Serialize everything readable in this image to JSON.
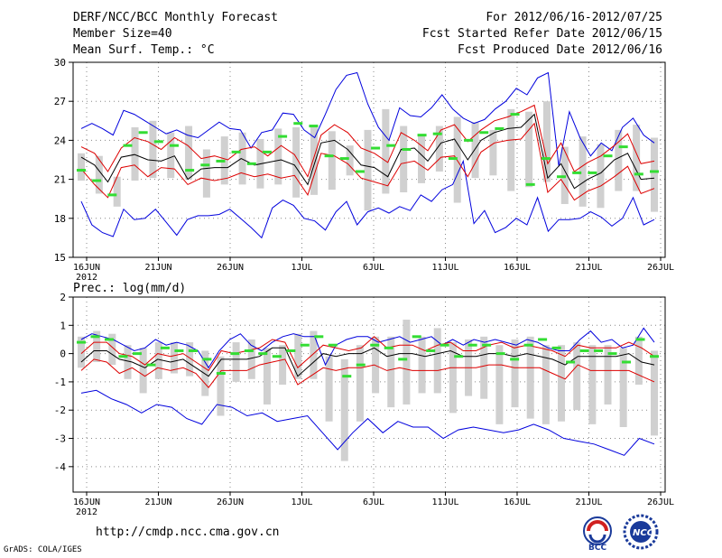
{
  "header": {
    "title": "DERF/NCC/BCC Monthly Forecast",
    "member_size": "Member Size=40",
    "variable": "Mean Surf. Temp.: °C",
    "period": "For 2012/06/16-2012/07/25",
    "started": "Fcst Started Refer Date 2012/06/15",
    "produced": "Fcst Produced Date 2012/06/16"
  },
  "footer": {
    "url": "http://cmdp.ncc.cma.gov.cn",
    "credit": "GrADS: COLA/IGES",
    "logo_bcc": "BCC",
    "logo_ncc": "NCC"
  },
  "colors": {
    "max_min": "#0000dd",
    "spread": "#dd0000",
    "mean": "#000000",
    "median": "#33dd33",
    "range_bar": "#d0d0d0",
    "grid": "#888888"
  },
  "chart_data": [
    {
      "type": "line",
      "title": "Mean Surf. Temp.: °C",
      "ylim": [
        15,
        30
      ],
      "yticks": [
        "15",
        "18",
        "21",
        "24",
        "27",
        "30"
      ],
      "xticks": [
        "16JUN",
        "21JUN",
        "26JUN",
        "1JUL",
        "6JUL",
        "11JUL",
        "16JUL",
        "21JUL",
        "26JUL"
      ],
      "year_label": "2012",
      "days": 40,
      "series": [
        {
          "name": "max",
          "values": [
            24.9,
            25.3,
            24.9,
            24.4,
            26.3,
            26.0,
            25.5,
            25.0,
            24.5,
            24.8,
            24.4,
            24.2,
            24.8,
            25.4,
            24.9,
            24.8,
            23.4,
            24.6,
            24.8,
            26.1,
            26.0,
            24.8,
            24.2,
            26.0,
            27.9,
            29.0,
            29.2,
            26.8,
            25.0,
            24.0,
            26.5,
            25.9,
            25.8,
            26.5,
            27.5,
            26.4,
            25.7,
            25.3,
            25.6,
            26.4,
            27.0,
            28.0,
            27.5,
            28.8,
            29.2,
            22.0,
            26.2,
            24.2,
            22.8,
            23.8,
            23.2,
            25.0,
            25.7,
            24.4,
            23.8
          ]
        },
        {
          "name": "min",
          "values": [
            19.3,
            17.5,
            16.9,
            16.6,
            18.7,
            17.9,
            18.0,
            18.7,
            17.7,
            16.7,
            17.9,
            18.2,
            18.2,
            18.3,
            18.7,
            18.0,
            17.3,
            16.5,
            18.8,
            19.4,
            19.0,
            18.0,
            17.8,
            17.1,
            18.5,
            19.3,
            17.5,
            18.5,
            18.8,
            18.4,
            18.9,
            18.6,
            19.8,
            19.3,
            20.2,
            20.6,
            22.4,
            17.6,
            18.6,
            16.9,
            17.3,
            18.0,
            17.5,
            19.6,
            17.0,
            17.9,
            17.9,
            18.0,
            18.5,
            18.1,
            17.4,
            18.0,
            19.6,
            17.5,
            17.9
          ]
        },
        {
          "name": "spread_upper",
          "values": [
            23.5,
            23.0,
            21.6,
            23.4,
            24.2,
            23.9,
            23.3,
            24.2,
            23.6,
            22.6,
            22.8,
            22.5,
            23.3,
            23.5,
            22.8,
            23.6,
            22.9,
            21.2,
            24.4,
            25.2,
            24.6,
            23.4,
            23.0,
            22.3,
            24.6,
            24.0,
            23.2,
            24.8,
            25.2,
            23.9,
            24.8,
            25.5,
            25.8,
            26.2,
            26.7,
            22.2,
            23.8,
            21.6,
            22.3,
            22.8,
            23.6,
            24.5,
            22.2,
            22.4
          ]
        },
        {
          "name": "spread_lower",
          "values": [
            21.8,
            20.6,
            19.6,
            21.9,
            22.1,
            21.2,
            21.9,
            21.8,
            20.6,
            21.1,
            20.9,
            21.1,
            21.5,
            21.2,
            21.4,
            21.1,
            21.3,
            19.8,
            23.0,
            22.8,
            22.2,
            21.1,
            20.8,
            20.5,
            22.2,
            22.4,
            21.7,
            22.7,
            22.8,
            21.2,
            23.1,
            23.8,
            24.0,
            24.1,
            25.3,
            20.0,
            21.0,
            19.4,
            20.1,
            20.5,
            21.2,
            22.0,
            19.9,
            20.3
          ]
        },
        {
          "name": "mean",
          "values": [
            22.7,
            22.1,
            20.8,
            22.7,
            22.9,
            22.5,
            22.4,
            22.8,
            21.0,
            21.8,
            21.9,
            21.9,
            22.6,
            22.1,
            22.3,
            22.5,
            22.1,
            20.6,
            23.8,
            24.0,
            23.3,
            22.1,
            21.9,
            21.2,
            23.3,
            23.4,
            22.4,
            23.8,
            24.1,
            22.5,
            24.0,
            24.6,
            24.9,
            25.0,
            26.0,
            21.1,
            22.2,
            20.3,
            21.0,
            21.5,
            22.5,
            23.0,
            21.0,
            21.1
          ]
        },
        {
          "name": "median",
          "values": [
            21.7,
            20.9,
            19.8,
            23.6,
            24.6,
            23.9,
            23.6,
            21.7,
            22.1,
            22.4,
            23.1,
            22.2,
            23.1,
            24.3,
            25.3,
            25.1,
            22.8,
            22.6,
            21.6,
            23.4,
            23.6,
            23.3,
            24.4,
            24.5,
            22.6,
            24.0,
            24.6,
            24.9,
            26.0,
            20.6,
            22.6,
            21.2,
            21.5,
            21.5,
            22.8,
            23.5,
            21.4,
            21.6
          ]
        },
        {
          "name": "range_bars",
          "values": [
            [
              20.9,
              23.0
            ],
            [
              19.9,
              22.8
            ],
            [
              18.9,
              21.2
            ],
            [
              20.9,
              25.0
            ],
            [
              21.1,
              25.5
            ],
            [
              21.1,
              24.6
            ],
            [
              21.0,
              25.1
            ],
            [
              19.6,
              23.3
            ],
            [
              20.6,
              24.3
            ],
            [
              20.6,
              24.6
            ],
            [
              20.3,
              24.1
            ],
            [
              20.6,
              24.9
            ],
            [
              19.6,
              25.0
            ],
            [
              19.8,
              25.2
            ],
            [
              20.2,
              24.7
            ],
            [
              21.3,
              23.6
            ],
            [
              18.6,
              24.8
            ],
            [
              19.9,
              26.4
            ],
            [
              20.0,
              25.1
            ],
            [
              20.7,
              24.4
            ],
            [
              21.6,
              25.1
            ],
            [
              19.2,
              25.8
            ],
            [
              21.1,
              25.4
            ],
            [
              21.3,
              24.8
            ],
            [
              20.1,
              26.4
            ],
            [
              20.4,
              26.2
            ],
            [
              20.8,
              27.0
            ],
            [
              19.1,
              23.5
            ],
            [
              18.9,
              24.3
            ],
            [
              18.8,
              23.7
            ],
            [
              20.1,
              24.8
            ],
            [
              20.1,
              25.2
            ],
            [
              18.5,
              24.2
            ]
          ]
        }
      ]
    },
    {
      "type": "line",
      "title": "Prec.: log(mm/d)",
      "ylim": [
        -4.9,
        2
      ],
      "yticks": [
        "-4",
        "-3",
        "-2",
        "-1",
        "0",
        "1",
        "2"
      ],
      "xticks": [
        "16JUN",
        "21JUN",
        "26JUN",
        "1JUL",
        "6JUL",
        "11JUL",
        "16JUL",
        "21JUL",
        "26JUL"
      ],
      "year_label": "2012",
      "days": 40,
      "series": [
        {
          "name": "max",
          "values": [
            0.5,
            0.7,
            0.6,
            0.5,
            0.3,
            0.1,
            0.2,
            0.5,
            0.3,
            0.4,
            0.3,
            0.1,
            -0.5,
            0.1,
            0.5,
            0.7,
            0.3,
            0.1,
            0.4,
            0.6,
            0.7,
            0.6,
            0.6,
            -0.4,
            0.3,
            0.5,
            0.6,
            0.6,
            0.4,
            0.5,
            0.6,
            0.4,
            0.5,
            0.6,
            0.3,
            0.5,
            0.3,
            0.5,
            0.4,
            0.5,
            0.4,
            0.3,
            0.5,
            0.4,
            0.2,
            0.1,
            0.1,
            0.5,
            0.8,
            0.4,
            0.5,
            0.2,
            0.3,
            0.9,
            0.4
          ]
        },
        {
          "name": "min",
          "values": [
            -1.4,
            -1.3,
            -1.6,
            -1.8,
            -2.1,
            -1.8,
            -1.9,
            -2.3,
            -2.5,
            -1.8,
            -1.9,
            -2.2,
            -2.1,
            -2.4,
            -2.3,
            -2.2,
            -2.8,
            -3.4,
            -2.8,
            -2.3,
            -2.8,
            -2.4,
            -2.6,
            -2.6,
            -3.0,
            -2.7,
            -2.6,
            -2.7,
            -2.8,
            -2.7,
            -2.5,
            -2.7,
            -3.0,
            -3.1,
            -3.2,
            -3.4,
            -3.6,
            -3.0,
            -3.2
          ]
        },
        {
          "name": "spread_upper",
          "values": [
            0.0,
            0.4,
            0.4,
            0.0,
            -0.1,
            -0.4,
            0.0,
            -0.1,
            0.0,
            -0.3,
            -0.6,
            0.1,
            0.0,
            0.1,
            0.2,
            0.5,
            0.4,
            -0.5,
            -0.1,
            0.3,
            0.2,
            0.1,
            0.2,
            0.6,
            0.2,
            0.3,
            0.3,
            0.1,
            0.3,
            0.4,
            0.1,
            0.1,
            0.3,
            0.4,
            0.2,
            0.3,
            0.2,
            0.1,
            -0.1,
            0.3,
            0.2,
            0.2,
            0.2,
            0.4,
            0.2,
            -0.1
          ]
        },
        {
          "name": "spread_lower",
          "values": [
            -0.6,
            -0.2,
            -0.3,
            -0.7,
            -0.5,
            -0.8,
            -0.5,
            -0.6,
            -0.5,
            -0.7,
            -1.2,
            -0.6,
            -0.6,
            -0.6,
            -0.4,
            -0.3,
            -0.2,
            -1.1,
            -0.8,
            -0.5,
            -0.6,
            -0.5,
            -0.5,
            -0.4,
            -0.6,
            -0.5,
            -0.6,
            -0.6,
            -0.6,
            -0.5,
            -0.5,
            -0.5,
            -0.4,
            -0.4,
            -0.5,
            -0.5,
            -0.5,
            -0.7,
            -0.9,
            -0.4,
            -0.6,
            -0.6,
            -0.6,
            -0.6,
            -0.8,
            -1.0
          ]
        },
        {
          "name": "mean",
          "values": [
            -0.3,
            0.1,
            0.1,
            -0.2,
            -0.3,
            -0.5,
            -0.2,
            -0.3,
            -0.2,
            -0.5,
            -0.8,
            -0.2,
            -0.2,
            -0.2,
            -0.1,
            0.2,
            0.2,
            -0.8,
            -0.4,
            0.0,
            -0.1,
            0.0,
            0.0,
            0.2,
            -0.1,
            0.0,
            0.0,
            -0.1,
            0.0,
            0.1,
            -0.1,
            -0.1,
            0.0,
            0.0,
            -0.1,
            0.0,
            -0.1,
            -0.2,
            -0.4,
            -0.1,
            -0.1,
            -0.1,
            -0.1,
            0.0,
            -0.3,
            -0.4
          ]
        },
        {
          "name": "median",
          "values": [
            0.4,
            0.6,
            0.5,
            -0.1,
            0.0,
            -0.4,
            0.2,
            0.1,
            0.1,
            -0.2,
            -0.7,
            0.0,
            0.1,
            0.0,
            -0.1,
            0.1,
            0.3,
            0.6,
            0.3,
            -0.8,
            -0.4,
            0.3,
            0.2,
            -0.2,
            0.6,
            0.1,
            0.3,
            -0.1,
            0.3,
            0.3,
            0.0,
            -0.2,
            0.3,
            0.5,
            0.2,
            -0.3,
            0.1,
            0.1,
            0.0,
            -0.3,
            0.5,
            -0.1
          ]
        },
        {
          "name": "range_bars",
          "values": [
            [
              -0.5,
              0.6
            ],
            [
              -0.3,
              0.8
            ],
            [
              -0.4,
              0.7
            ],
            [
              -0.9,
              0.3
            ],
            [
              -1.4,
              0.2
            ],
            [
              -0.9,
              0.4
            ],
            [
              -0.7,
              0.4
            ],
            [
              -0.8,
              0.4
            ],
            [
              -1.5,
              0.1
            ],
            [
              -2.2,
              -0.1
            ],
            [
              -1.0,
              0.4
            ],
            [
              -0.9,
              0.5
            ],
            [
              -1.8,
              0.2
            ],
            [
              -1.1,
              0.3
            ],
            [
              -0.9,
              0.7
            ],
            [
              -0.9,
              0.8
            ],
            [
              -2.4,
              -0.1
            ],
            [
              -3.8,
              -0.2
            ],
            [
              -2.4,
              0.3
            ],
            [
              -1.4,
              0.6
            ],
            [
              -1.9,
              0.6
            ],
            [
              -1.8,
              1.2
            ],
            [
              -1.4,
              0.6
            ],
            [
              -1.4,
              0.9
            ],
            [
              -2.1,
              0.4
            ],
            [
              -1.5,
              0.5
            ],
            [
              -1.6,
              0.6
            ],
            [
              -2.5,
              0.3
            ],
            [
              -1.9,
              0.5
            ],
            [
              -2.3,
              0.6
            ],
            [
              -2.5,
              0.3
            ],
            [
              -2.4,
              0.3
            ],
            [
              -2.0,
              0.4
            ],
            [
              -2.5,
              0.3
            ],
            [
              -1.8,
              0.3
            ],
            [
              -2.6,
              0.2
            ],
            [
              -1.1,
              0.6
            ],
            [
              -2.9,
              0.1
            ]
          ]
        }
      ]
    }
  ]
}
